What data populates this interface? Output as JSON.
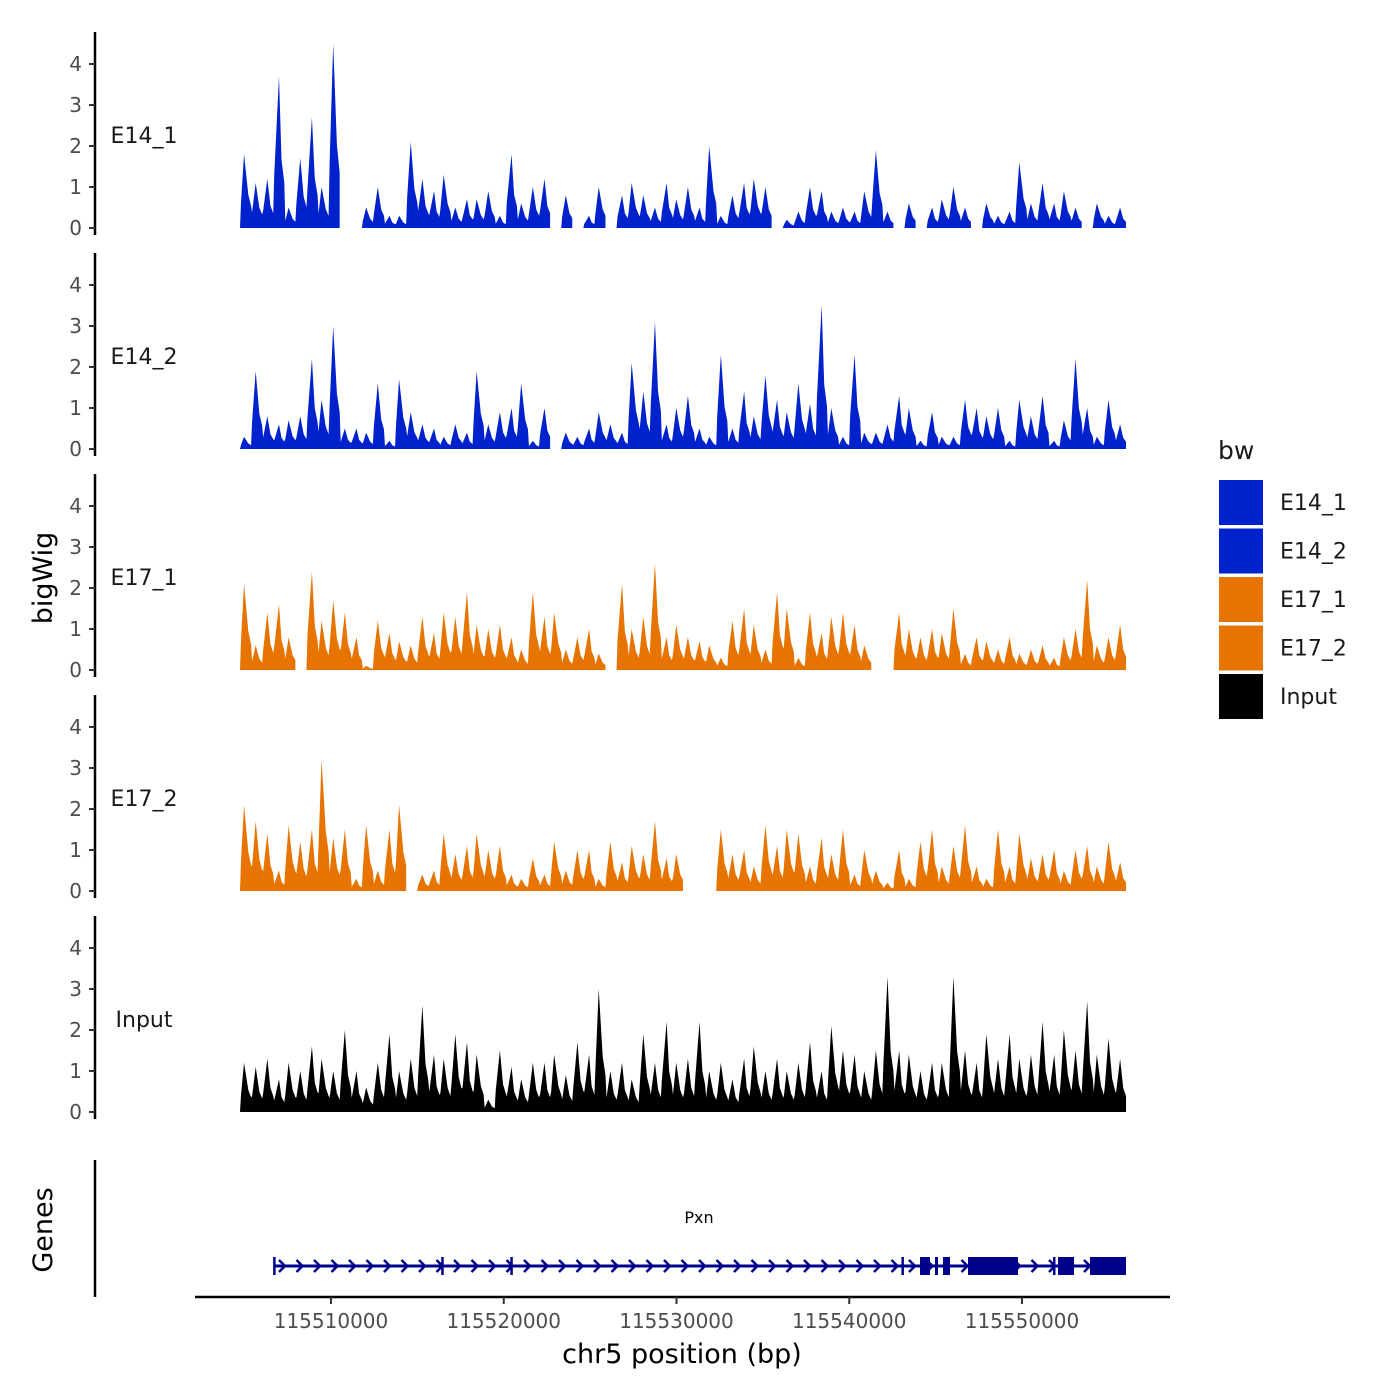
{
  "chart_data": {
    "type": "area",
    "xlabel": "chr5 position (bp)",
    "ylabel": "bigWig",
    "genes_label": "Genes",
    "x_range": [
      115504730,
      115556020
    ],
    "x_ticks": [
      115510000,
      115520000,
      115530000,
      115540000,
      115550000
    ],
    "x_tick_labels": [
      "115510000",
      "115520000",
      "115530000",
      "115540000",
      "115550000"
    ],
    "ylim": [
      0,
      4.7
    ],
    "y_ticks": [
      "0",
      "1",
      "2",
      "3",
      "4"
    ],
    "bin_start": 115504730,
    "bin_size": 641,
    "legend": {
      "title": "bw",
      "placement": "right",
      "entries": [
        {
          "name": "E14_1",
          "color": "#0022CC"
        },
        {
          "name": "E14_2",
          "color": "#0022CC"
        },
        {
          "name": "E17_1",
          "color": "#E87400"
        },
        {
          "name": "E17_2",
          "color": "#E87400"
        },
        {
          "name": "Input",
          "color": "#000000"
        }
      ]
    },
    "series": [
      {
        "name": "E14_1",
        "color": "#0022CC",
        "values": [
          1.8,
          1.1,
          1.2,
          3.7,
          0.5,
          1.7,
          2.7,
          1.0,
          4.5,
          0,
          0,
          0.5,
          1.0,
          0.3,
          0.3,
          2.1,
          1.2,
          0.9,
          1.3,
          0.5,
          0.7,
          0.7,
          0.9,
          0.3,
          1.8,
          0.6,
          1.0,
          1.2,
          0,
          0.8,
          0,
          0.3,
          1.0,
          0,
          0.8,
          1.1,
          0.8,
          0.5,
          1.1,
          0.7,
          1.0,
          0.5,
          2.0,
          0.3,
          0.8,
          1.1,
          1.2,
          1.0,
          0,
          0.2,
          0.4,
          1.0,
          0.9,
          0.4,
          0.5,
          0.4,
          0.9,
          1.9,
          0.4,
          0,
          0.6,
          0,
          0.5,
          0.7,
          1.0,
          0.5,
          0,
          0.6,
          0.3,
          0.4,
          1.6,
          0.6,
          1.1,
          0.6,
          0.9,
          0.5,
          0,
          0.6,
          0.3,
          0.5
        ]
      },
      {
        "name": "E14_2",
        "color": "#0022CC",
        "values": [
          0.3,
          1.9,
          0.8,
          0.6,
          0.7,
          0.8,
          2.2,
          1.2,
          3.0,
          0.5,
          0.5,
          0.4,
          1.6,
          0.2,
          1.7,
          0.9,
          0.6,
          0.5,
          0.3,
          0.6,
          0.4,
          1.9,
          0.6,
          0.9,
          1.0,
          1.6,
          0.2,
          1.0,
          0,
          0.4,
          0.3,
          0.5,
          0.9,
          0.6,
          0.4,
          2.1,
          1.4,
          3.1,
          0.6,
          1.0,
          1.3,
          0.5,
          0.3,
          2.3,
          0.5,
          1.4,
          0.8,
          1.8,
          1.2,
          0.9,
          1.6,
          1.1,
          3.5,
          1.0,
          0.3,
          2.3,
          0.4,
          0.4,
          0.6,
          1.3,
          1.0,
          0.2,
          0.9,
          0.3,
          0.3,
          1.2,
          1.0,
          0.8,
          1.0,
          0.2,
          1.2,
          0.8,
          1.3,
          0.2,
          0.7,
          2.2,
          1.0,
          0.3,
          1.2,
          0.6
        ]
      },
      {
        "name": "E17_1",
        "color": "#E87400",
        "values": [
          2.1,
          0.6,
          1.4,
          1.6,
          0.8,
          0,
          2.4,
          1.2,
          1.7,
          1.4,
          0.8,
          0.1,
          1.2,
          0.9,
          0.7,
          0.6,
          1.3,
          0.9,
          1.4,
          1.3,
          1.9,
          1.1,
          1.0,
          1.1,
          0.8,
          0.5,
          1.9,
          1.3,
          1.4,
          0.5,
          0.8,
          1.0,
          0.4,
          0,
          2.1,
          1.0,
          1.3,
          2.6,
          0.8,
          1.1,
          0.8,
          0.7,
          0.6,
          0.3,
          1.2,
          1.5,
          1.1,
          0.5,
          1.9,
          1.5,
          0.3,
          1.4,
          0.9,
          1.3,
          1.4,
          1.1,
          0.6,
          0,
          0,
          1.4,
          1.0,
          0.8,
          1.0,
          0.9,
          1.5,
          0.4,
          0.8,
          0.7,
          0.5,
          0.8,
          0.4,
          0.5,
          0.6,
          0.3,
          0.8,
          1.0,
          2.2,
          0.6,
          0.8,
          1.1
        ]
      },
      {
        "name": "E17_2",
        "color": "#E87400",
        "values": [
          2.1,
          1.7,
          1.4,
          0.5,
          1.6,
          1.2,
          1.5,
          3.2,
          1.3,
          1.5,
          0.3,
          1.6,
          0.5,
          1.5,
          2.1,
          0,
          0.4,
          0.5,
          1.4,
          0.9,
          1.1,
          1.4,
          1.0,
          1.1,
          0.4,
          0.3,
          0.8,
          0.4,
          1.2,
          0.5,
          1.0,
          1.0,
          0.3,
          1.2,
          0.7,
          1.1,
          0.9,
          1.7,
          0.8,
          0.9,
          0,
          0,
          0,
          1.5,
          0.9,
          1.0,
          0.6,
          1.6,
          1.1,
          1.5,
          1.4,
          0.6,
          1.3,
          0.9,
          1.5,
          0.4,
          1.0,
          0.5,
          0.2,
          1.0,
          0.3,
          1.2,
          1.5,
          0.6,
          1.1,
          1.6,
          0.6,
          0.3,
          1.5,
          0.6,
          1.4,
          0.8,
          0.9,
          1.0,
          0.5,
          1.0,
          1.1,
          0.6,
          1.2,
          0.7
        ]
      },
      {
        "name": "Input",
        "color": "#000000",
        "values": [
          1.2,
          1.1,
          1.3,
          0.8,
          1.2,
          1.0,
          1.6,
          1.3,
          1.0,
          2.0,
          1.0,
          0.6,
          1.2,
          1.9,
          1.0,
          1.3,
          2.6,
          1.4,
          1.3,
          1.9,
          1.7,
          1.4,
          0.3,
          1.5,
          1.1,
          0.8,
          1.2,
          1.2,
          1.4,
          0.9,
          1.7,
          1.4,
          3.0,
          1.0,
          1.2,
          0.8,
          1.9,
          1.2,
          2.2,
          1.2,
          1.3,
          2.2,
          1.0,
          1.2,
          0.8,
          1.3,
          1.6,
          1.0,
          1.3,
          1.0,
          1.2,
          1.7,
          1.0,
          2.1,
          1.5,
          1.4,
          1.0,
          1.5,
          3.3,
          1.5,
          1.4,
          1.0,
          1.2,
          1.2,
          3.3,
          1.5,
          1.2,
          1.9,
          1.3,
          1.9,
          1.3,
          1.4,
          2.2,
          1.4,
          2.0,
          1.5,
          2.7,
          1.4,
          1.8,
          1.3
        ]
      }
    ],
    "gene": {
      "name": "Pxn",
      "strand": "+",
      "color": "#00008B",
      "start": 115506700,
      "end": 115556020,
      "exons": [
        [
          115506650,
          115506750
        ],
        [
          115516380,
          115516460
        ],
        [
          115520380,
          115520460
        ],
        [
          115543020,
          115543090
        ],
        [
          115544096,
          115544675
        ],
        [
          115544964,
          115545138
        ],
        [
          115545427,
          115545832
        ],
        [
          115546874,
          115549769
        ],
        [
          115551795,
          115551910
        ],
        [
          115552085,
          115553010
        ],
        [
          115553937,
          115556020
        ]
      ]
    }
  }
}
